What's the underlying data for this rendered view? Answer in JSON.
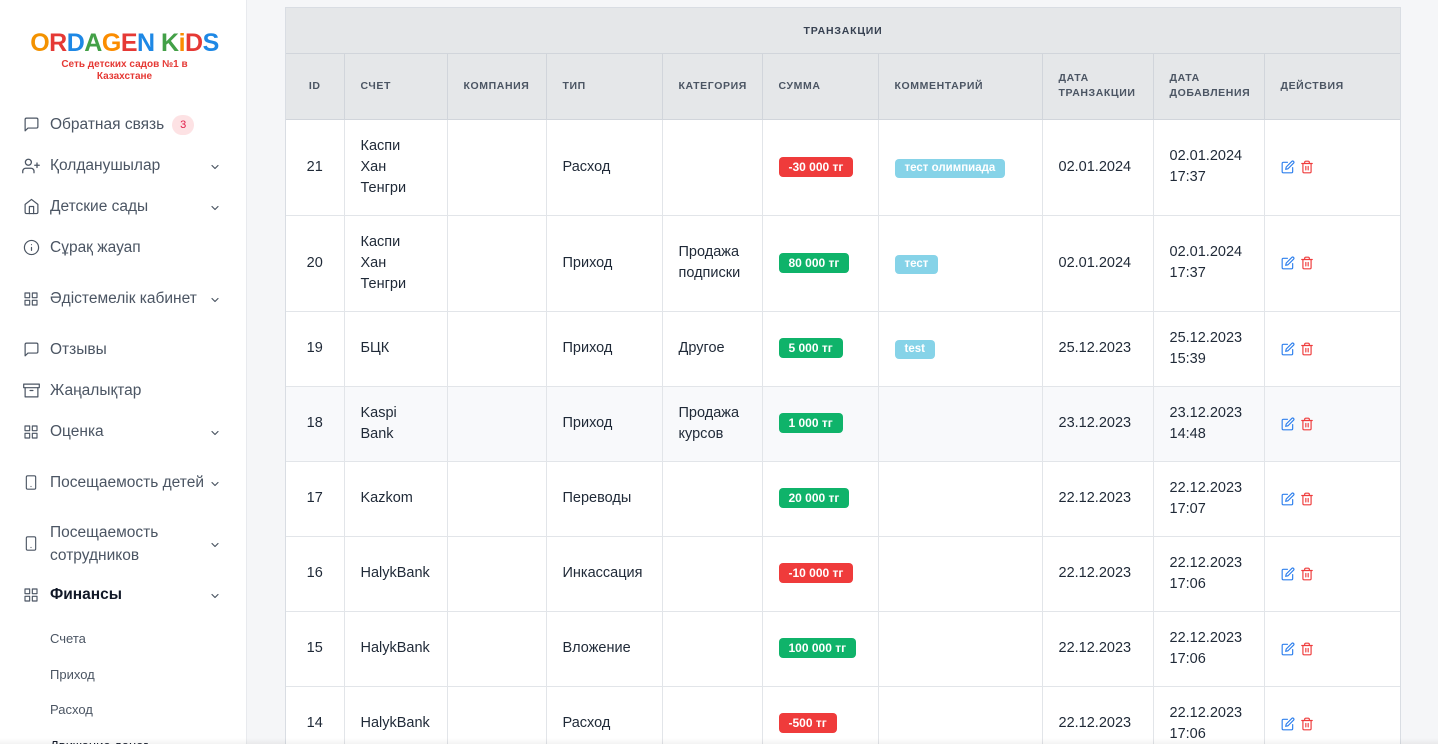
{
  "brand": {
    "logo_letters": [
      {
        "t": "O",
        "c": "#f39200"
      },
      {
        "t": "R",
        "c": "#e53935"
      },
      {
        "t": "D",
        "c": "#1e88e5"
      },
      {
        "t": "A",
        "c": "#43a047"
      },
      {
        "t": "G",
        "c": "#fb8c00"
      },
      {
        "t": "E",
        "c": "#e53935"
      },
      {
        "t": "N",
        "c": "#1e88e5"
      },
      {
        "t": " ",
        "c": "#ffffff"
      },
      {
        "t": "K",
        "c": "#43a047"
      },
      {
        "t": "i",
        "c": "#fb8c00"
      },
      {
        "t": "D",
        "c": "#e53935"
      },
      {
        "t": "S",
        "c": "#1e88e5"
      }
    ],
    "tagline": "Сеть детских садов №1 в Казахстане"
  },
  "sidebar": {
    "items": [
      {
        "label": "Обратная связь",
        "icon": "message-square-icon",
        "badge": "3",
        "chevron": false
      },
      {
        "label": "Қолданушылар",
        "icon": "user-plus-icon",
        "chevron": true
      },
      {
        "label": "Детские сады",
        "icon": "home-icon",
        "chevron": true
      },
      {
        "label": "Сұрақ жауап",
        "icon": "info-icon",
        "chevron": false
      },
      {
        "label": "Әдістемелік кабинет",
        "icon": "grid-icon",
        "chevron": true
      },
      {
        "label": "Отзывы",
        "icon": "message-square-icon",
        "chevron": false
      },
      {
        "label": "Жаңалықтар",
        "icon": "archive-icon",
        "chevron": false
      },
      {
        "label": "Оценка",
        "icon": "grid-icon",
        "chevron": true
      },
      {
        "label": "Посещаемость детей",
        "icon": "tablet-icon",
        "chevron": true
      },
      {
        "label": "Посещаемость сотрудников",
        "icon": "tablet-icon",
        "chevron": true
      },
      {
        "label": "Финансы",
        "icon": "grid-icon",
        "chevron": true
      }
    ],
    "sub_items": [
      "Счета",
      "Приход",
      "Расход",
      "Движение денег"
    ]
  },
  "table": {
    "title": "ТРАНЗАКЦИИ",
    "columns": [
      "ID",
      "СЧЕТ",
      "КОМПАНИЯ",
      "ТИП",
      "КАТЕГОРИЯ",
      "СУММА",
      "КОММЕНТАРИЙ",
      "ДАТА ТРАНЗАКЦИИ",
      "ДАТА ДОБАВЛЕНИЯ",
      "ДЕЙСТВИЯ"
    ],
    "rows": [
      {
        "id": "21",
        "account": "Каспи Хан Тенгри",
        "company": "",
        "type": "Расход",
        "category": "",
        "amount": "-30 000 тг",
        "negative": true,
        "comment": "тест олимпиада",
        "tx_date": "02.01.2024",
        "added": "02.01.2024 17:37"
      },
      {
        "id": "20",
        "account": "Каспи Хан Тенгри",
        "company": "",
        "type": "Приход",
        "category": "Продажа подписки",
        "amount": "80 000 тг",
        "negative": false,
        "comment": "тест",
        "tx_date": "02.01.2024",
        "added": "02.01.2024 17:37"
      },
      {
        "id": "19",
        "account": "БЦК",
        "company": "",
        "type": "Приход",
        "category": "Другое",
        "amount": "5 000 тг",
        "negative": false,
        "comment": "test",
        "tx_date": "25.12.2023",
        "added": "25.12.2023 15:39"
      },
      {
        "id": "18",
        "account": "Kaspi Bank",
        "company": "",
        "type": "Приход",
        "category": "Продажа курсов",
        "amount": "1 000 тг",
        "negative": false,
        "comment": "",
        "tx_date": "23.12.2023",
        "added": "23.12.2023 14:48"
      },
      {
        "id": "17",
        "account": "Kazkom",
        "company": "",
        "type": "Переводы",
        "category": "",
        "amount": "20 000 тг",
        "negative": false,
        "comment": "",
        "tx_date": "22.12.2023",
        "added": "22.12.2023 17:07"
      },
      {
        "id": "16",
        "account": "HalykBank",
        "company": "",
        "type": "Инкассация",
        "category": "",
        "amount": "-10 000 тг",
        "negative": true,
        "comment": "",
        "tx_date": "22.12.2023",
        "added": "22.12.2023 17:06"
      },
      {
        "id": "15",
        "account": "HalykBank",
        "company": "",
        "type": "Вложение",
        "category": "",
        "amount": "100 000 тг",
        "negative": false,
        "comment": "",
        "tx_date": "22.12.2023",
        "added": "22.12.2023 17:06"
      },
      {
        "id": "14",
        "account": "HalykBank",
        "company": "",
        "type": "Расход",
        "category": "",
        "amount": "-500 тг",
        "negative": true,
        "comment": "",
        "tx_date": "22.12.2023",
        "added": "22.12.2023 17:06"
      }
    ],
    "action_icons": [
      "edit-icon",
      "trash-icon"
    ],
    "colors": {
      "negative": "#ef3b3b",
      "positive": "#0fb36a",
      "comment": "#86d3e8",
      "edit": "#2f80ed",
      "delete": "#ef3b3b"
    }
  }
}
